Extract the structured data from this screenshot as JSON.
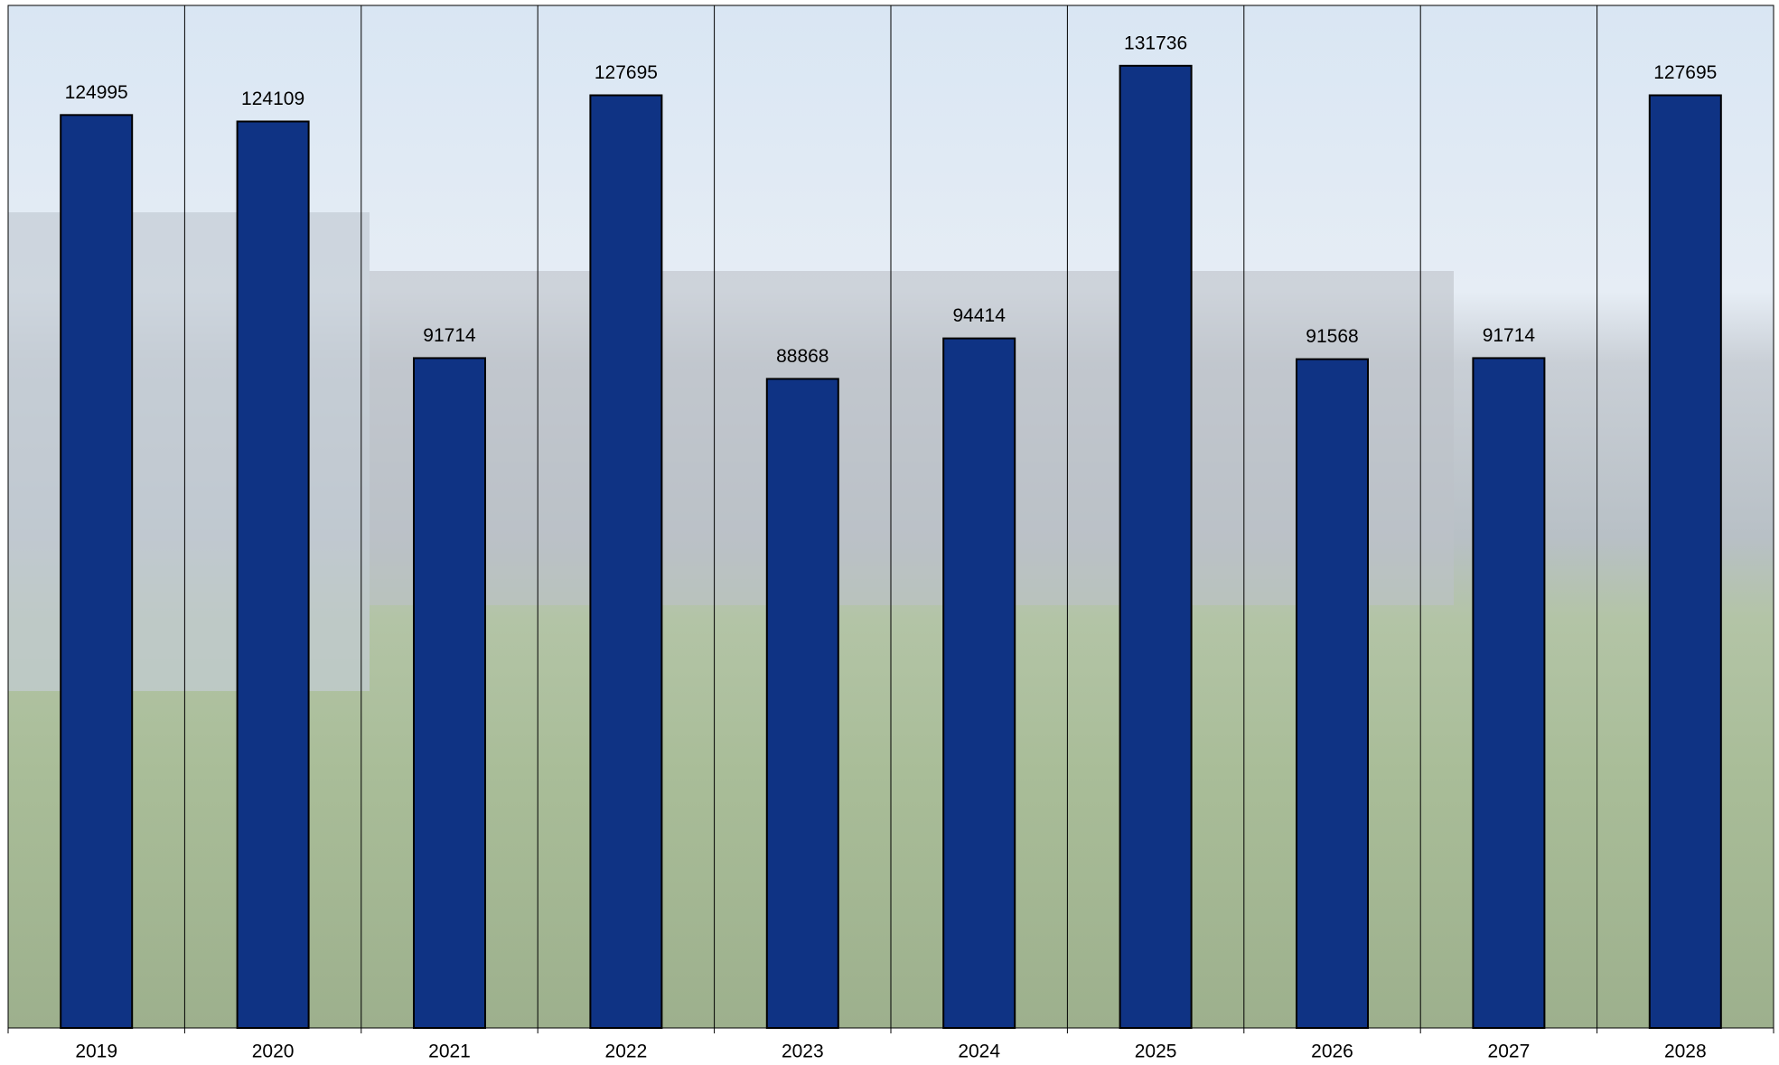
{
  "chart_data": {
    "type": "bar",
    "categories": [
      "2019",
      "2020",
      "2021",
      "2022",
      "2023",
      "2024",
      "2025",
      "2026",
      "2027",
      "2028"
    ],
    "values": [
      124995,
      124109,
      91714,
      127695,
      88868,
      94414,
      131736,
      91568,
      91714,
      127695
    ],
    "color": "#0f3384",
    "ylim": [
      0,
      140000
    ]
  }
}
